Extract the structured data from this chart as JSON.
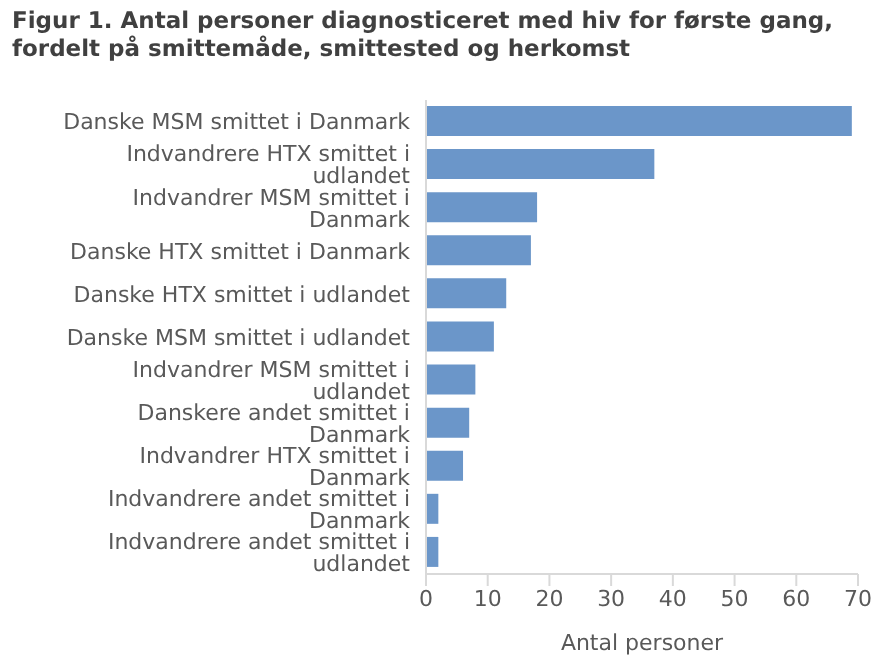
{
  "chart_data": {
    "type": "bar",
    "orientation": "horizontal",
    "title": "Figur 1. Antal personer diagnosticeret med hiv for første gang, fordelt på smittemåde, smittested og herkomst",
    "xlabel": "Antal personer",
    "categories": [
      "Danske MSM smittet i Danmark",
      "Indvandrere HTX smittet i udlandet",
      "Indvandrer MSM smittet i Danmark",
      "Danske HTX smittet i Danmark",
      "Danske HTX smittet i udlandet",
      "Danske MSM smittet i udlandet",
      "Indvandrer MSM smittet i udlandet",
      "Danskere andet smittet i Danmark",
      "Indvandrer HTX smittet i Danmark",
      "Indvandrere andet smittet i Danmark",
      "Indvandrere andet smittet i udlandet"
    ],
    "values": [
      69,
      37,
      18,
      17,
      13,
      11,
      8,
      7,
      6,
      2,
      2
    ],
    "color": "#6b96c9",
    "xlim": [
      0,
      70
    ],
    "xticks": [
      0,
      10,
      20,
      30,
      40,
      50,
      60,
      70
    ],
    "grid": false,
    "legend": false
  }
}
